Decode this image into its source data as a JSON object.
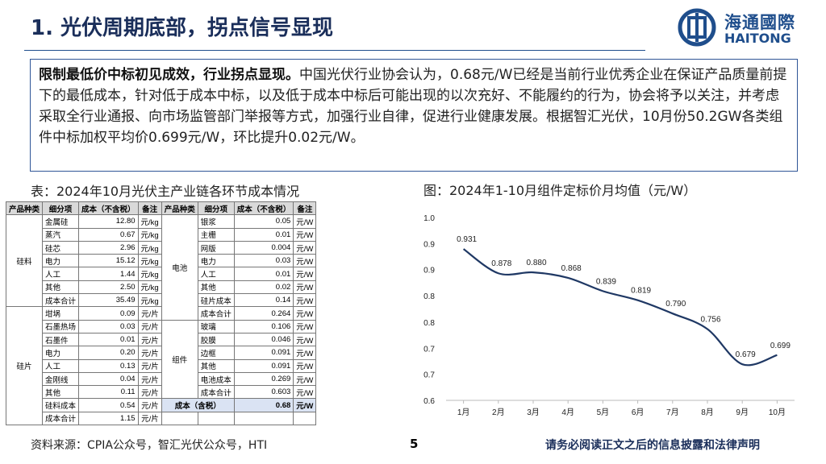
{
  "header": {
    "title": "1. 光伏周期底部，拐点信号显现"
  },
  "logo": {
    "cn": "海通國際",
    "en": "HAITONG"
  },
  "summary": {
    "lead": "限制最低价中标初见成效，行业拐点显现。",
    "body": "中国光伏行业协会认为，0.68元/W已经是当前行业优秀企业在保证产品质量前提下的最低成本，针对低于成本中标，以及低于成本中标后可能出现的以次充好、不能履约的行为，协会将予以关注，并考虑采取全行业通报、向市场监管部门举报等方式，加强行业自律，促进行业健康发展。根据智汇光伏，10月份50.2GW各类组件中标加权平均价0.699元/W，环比提升0.02元/W。"
  },
  "table": {
    "caption": "表：2024年10月光伏主产业链各环节成本情况",
    "header": [
      "产品种类",
      "细分项",
      "成本（不含税）",
      "备注"
    ],
    "left": [
      {
        "product": "硅料",
        "rows": [
          [
            "金属硅",
            "12.80",
            "元/kg"
          ],
          [
            "蒸汽",
            "0.67",
            "元/kg"
          ],
          [
            "硅芯",
            "2.96",
            "元/kg"
          ],
          [
            "电力",
            "15.12",
            "元/kg"
          ],
          [
            "人工",
            "1.44",
            "元/kg"
          ],
          [
            "其他",
            "2.50",
            "元/kg"
          ],
          [
            "成本合计",
            "35.49",
            "元/kg"
          ]
        ]
      },
      {
        "product": "硅片",
        "rows": [
          [
            "坩埚",
            "0.09",
            "元/片"
          ],
          [
            "石墨热场",
            "0.03",
            "元/片"
          ],
          [
            "石墨件",
            "0.01",
            "元/片"
          ],
          [
            "电力",
            "0.20",
            "元/片"
          ],
          [
            "人工",
            "0.13",
            "元/片"
          ],
          [
            "金刚线",
            "0.04",
            "元/片"
          ],
          [
            "其他",
            "0.11",
            "元/片"
          ],
          [
            "硅料成本",
            "0.54",
            "元/片"
          ],
          [
            "成本合计",
            "1.15",
            "元/片"
          ]
        ]
      }
    ],
    "right": [
      {
        "product": "电池",
        "rows": [
          [
            "银浆",
            "0.05",
            "元/W"
          ],
          [
            "主栅",
            "0.01",
            "元/W"
          ],
          [
            "网版",
            "0.004",
            "元/W"
          ],
          [
            "电力",
            "0.03",
            "元/W"
          ],
          [
            "人工",
            "0.01",
            "元/W"
          ],
          [
            "其他",
            "0.02",
            "元/W"
          ],
          [
            "硅片成本",
            "0.14",
            "元/W"
          ],
          [
            "成本合计",
            "0.264",
            "元/W"
          ]
        ]
      },
      {
        "product": "组件",
        "rows": [
          [
            "玻璃",
            "0.106",
            "元/W"
          ],
          [
            "胶膜",
            "0.046",
            "元/W"
          ],
          [
            "边框",
            "0.091",
            "元/W"
          ],
          [
            "其他",
            "0.091",
            "元/W"
          ],
          [
            "电池成本",
            "0.269",
            "元/W"
          ],
          [
            "成本合计",
            "0.603",
            "元/W"
          ]
        ]
      }
    ],
    "tax_row": [
      "成本（含税）",
      "0.68",
      "元/W"
    ]
  },
  "chart_data": {
    "type": "line",
    "title": "图：2024年1-10月组件定标价月均值（元/W）",
    "categories": [
      "1月",
      "2月",
      "3月",
      "4月",
      "5月",
      "6月",
      "7月",
      "8月",
      "9月",
      "10月"
    ],
    "values": [
      0.931,
      0.878,
      0.88,
      0.868,
      0.839,
      0.819,
      0.79,
      0.756,
      0.679,
      0.699
    ],
    "value_labels": [
      "0.931",
      "0.878",
      "0.880",
      "0.868",
      "0.839",
      "0.819",
      "0.790",
      "0.756",
      "0.679",
      "0.699"
    ],
    "color": "#1f3864",
    "ylim": [
      0.6,
      1.0
    ],
    "yticks": [
      {
        "value": 1.0,
        "label": "1.0"
      },
      {
        "value": 0.943,
        "label": "0.9"
      },
      {
        "value": 0.886,
        "label": "0.9"
      },
      {
        "value": 0.829,
        "label": "0.8"
      },
      {
        "value": 0.771,
        "label": "0.8"
      },
      {
        "value": 0.714,
        "label": "0.7"
      },
      {
        "value": 0.657,
        "label": "0.7"
      },
      {
        "value": 0.6,
        "label": "0.6"
      }
    ],
    "grid": false,
    "smooth": true
  },
  "footer": {
    "source": "资料来源：CPIA公众号，智汇光伏公众号，HTI",
    "page": "5",
    "disclaimer": "请务必阅读正文之后的信息披露和法律声明"
  }
}
